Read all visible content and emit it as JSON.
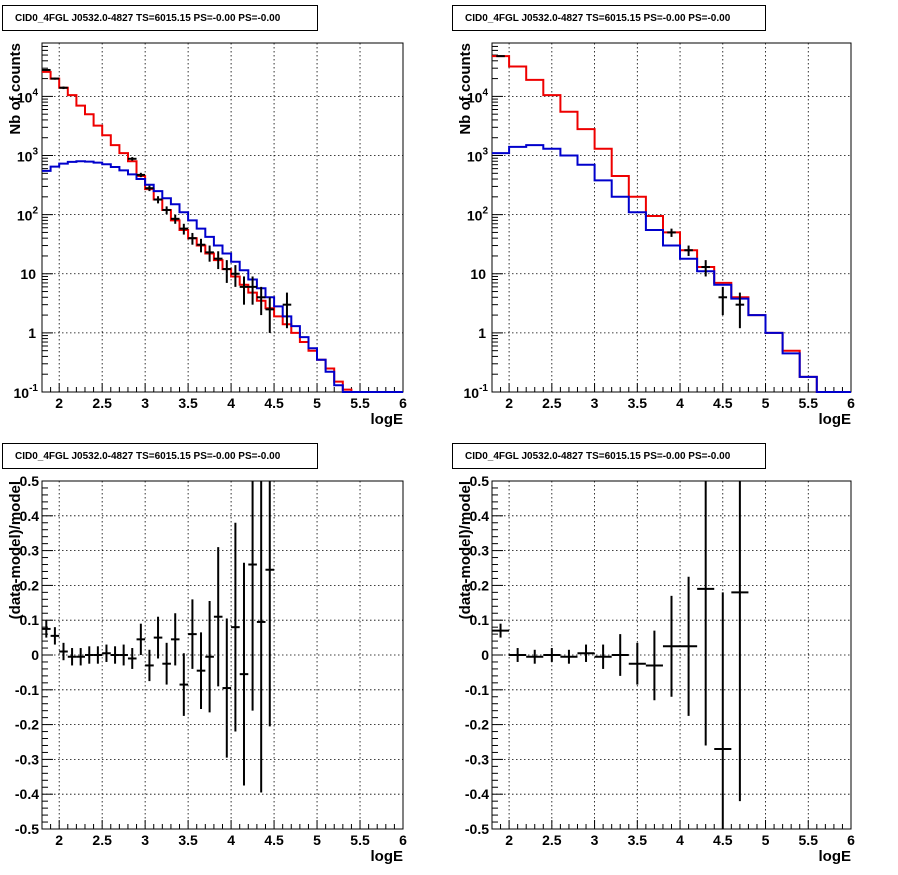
{
  "colors": {
    "data": "#000000",
    "red_model": "#ee0000",
    "blue_model": "#0000cc"
  },
  "panels": [
    {
      "title": "CID0_4FGL J0532.0-4827 TS=6015.15 PS=-0.00 PS=-0.00",
      "xlabel": "logE",
      "ylabel": "Nb of counts"
    },
    {
      "title": "CID0_4FGL J0532.0-4827 TS=6015.15 PS=-0.00 PS=-0.00",
      "xlabel": "logE",
      "ylabel": "Nb of counts"
    },
    {
      "title": "CID0_4FGL J0532.0-4827 TS=6015.15 PS=-0.00 PS=-0.00",
      "xlabel": "logE",
      "ylabel": "(data-model)/model"
    },
    {
      "title": "CID0_4FGL J0532.0-4827 TS=6015.15 PS=-0.00 PS=-0.00",
      "xlabel": "logE",
      "ylabel": "(data-model)/model"
    }
  ],
  "chart_data": [
    {
      "type": "line",
      "title": "CID0_4FGL J0532.0-4827 TS=6015.15 PS=-0.00 PS=-0.00",
      "xlabel": "logE",
      "ylabel": "Nb of counts",
      "yscale": "log",
      "xlim": [
        1.8,
        6.0
      ],
      "ylim": [
        0.1,
        80000
      ],
      "grid": true,
      "x_ticks": [
        2,
        2.5,
        3,
        3.5,
        4,
        4.5,
        5,
        5.5,
        6
      ],
      "x_tick_labels": [
        "2",
        "2.5",
        "3",
        "3.5",
        "4",
        "4.5",
        "5",
        "5.5",
        "6"
      ],
      "y_ticks": [
        0.1,
        1,
        10,
        100,
        1000,
        10000
      ],
      "y_tick_labels": [
        "10^-1",
        "1",
        "10",
        "10^2",
        "10^3",
        "10^4"
      ],
      "bin_edges": [
        1.8,
        1.9,
        2.0,
        2.1,
        2.2,
        2.3,
        2.4,
        2.5,
        2.6,
        2.7,
        2.8,
        2.9,
        3.0,
        3.1,
        3.2,
        3.3,
        3.4,
        3.5,
        3.6,
        3.7,
        3.8,
        3.9,
        4.0,
        4.1,
        4.2,
        4.3,
        4.4,
        4.5,
        4.6,
        4.7,
        4.8,
        4.9,
        5.0,
        5.1,
        5.2,
        5.3,
        5.4,
        5.5,
        5.6,
        5.7,
        5.8,
        5.9,
        6.0
      ],
      "series": [
        {
          "name": "",
          "color": "red",
          "values": [
            26000,
            20000,
            14000,
            10500,
            7000,
            5000,
            3200,
            2200,
            1500,
            1100,
            800,
            450,
            270,
            180,
            120,
            80,
            55,
            40,
            30,
            22,
            17,
            12,
            9,
            6.5,
            4.8,
            3.5,
            2.6,
            1.9,
            1.4,
            1,
            0.7,
            0.5,
            0.35,
            0.25,
            0.15,
            0.11,
            0.1,
            0.1,
            0.1,
            0.1,
            0.1,
            0.1
          ]
        },
        {
          "name": "",
          "color": "blue",
          "values": [
            550,
            650,
            730,
            780,
            800,
            790,
            760,
            710,
            640,
            560,
            480,
            400,
            320,
            250,
            190,
            150,
            110,
            80,
            58,
            42,
            30,
            22,
            16,
            11.5,
            8,
            5.7,
            4,
            2.8,
            1.9,
            1.3,
            0.85,
            0.55,
            0.35,
            0.22,
            0.13,
            0.1,
            0.1,
            0.1,
            0.1,
            0.1,
            0.1,
            0.1
          ]
        }
      ],
      "points": [
        {
          "x": 1.85,
          "y": 28000,
          "err": 900
        },
        {
          "x": 1.95,
          "y": 20000,
          "err": 800
        },
        {
          "x": 2.05,
          "y": 14000,
          "err": 700
        },
        {
          "x": 2.85,
          "y": 880,
          "err": 60
        },
        {
          "x": 2.95,
          "y": 470,
          "err": 40
        },
        {
          "x": 3.05,
          "y": 280,
          "err": 30
        },
        {
          "x": 3.15,
          "y": 180,
          "err": 25
        },
        {
          "x": 3.25,
          "y": 120,
          "err": 18
        },
        {
          "x": 3.35,
          "y": 85,
          "err": 15
        },
        {
          "x": 3.45,
          "y": 58,
          "err": 12
        },
        {
          "x": 3.55,
          "y": 40,
          "err": 9
        },
        {
          "x": 3.65,
          "y": 31,
          "err": 8
        },
        {
          "x": 3.75,
          "y": 23,
          "err": 7
        },
        {
          "x": 3.85,
          "y": 18,
          "err": 6
        },
        {
          "x": 3.95,
          "y": 12,
          "err": 5
        },
        {
          "x": 4.05,
          "y": 10,
          "err": 4
        },
        {
          "x": 4.15,
          "y": 6,
          "err": 3
        },
        {
          "x": 4.25,
          "y": 6,
          "err": 3
        },
        {
          "x": 4.35,
          "y": 4,
          "err": 2
        },
        {
          "x": 4.45,
          "y": 2.5,
          "err": 1.5
        },
        {
          "x": 4.65,
          "y": 3,
          "err": 1.8
        }
      ]
    },
    {
      "type": "line",
      "title": "CID0_4FGL J0532.0-4827 TS=6015.15 PS=-0.00 PS=-0.00",
      "xlabel": "logE",
      "ylabel": "Nb of counts",
      "yscale": "log",
      "xlim": [
        1.8,
        6.0
      ],
      "ylim": [
        0.1,
        80000
      ],
      "grid": true,
      "x_ticks": [
        2,
        2.5,
        3,
        3.5,
        4,
        4.5,
        5,
        5.5,
        6
      ],
      "x_tick_labels": [
        "2",
        "2.5",
        "3",
        "3.5",
        "4",
        "4.5",
        "5",
        "5.5",
        "6"
      ],
      "y_ticks": [
        0.1,
        1,
        10,
        100,
        1000,
        10000
      ],
      "y_tick_labels": [
        "10^-1",
        "1",
        "10",
        "10^2",
        "10^3",
        "10^4"
      ],
      "bin_edges": [
        1.8,
        2.0,
        2.2,
        2.4,
        2.6,
        2.8,
        3.0,
        3.2,
        3.4,
        3.6,
        3.8,
        4.0,
        4.2,
        4.4,
        4.6,
        4.8,
        5.0,
        5.2,
        5.4,
        5.6,
        5.8,
        6.0
      ],
      "series": [
        {
          "name": "",
          "color": "red",
          "values": [
            48000,
            32000,
            19000,
            10500,
            5500,
            2800,
            1300,
            450,
            200,
            95,
            50,
            25,
            13,
            7,
            4,
            2,
            1,
            0.5,
            0.18,
            0.1,
            0.1
          ]
        },
        {
          "name": "",
          "color": "blue",
          "values": [
            1100,
            1400,
            1500,
            1300,
            1000,
            700,
            380,
            200,
            110,
            55,
            30,
            18,
            11,
            6.5,
            3.8,
            2,
            1,
            0.45,
            0.18,
            0.1,
            0.1
          ]
        }
      ],
      "points": [
        {
          "x": 1.9,
          "y": 48000,
          "err": 1500
        },
        {
          "x": 3.9,
          "y": 50,
          "err": 8
        },
        {
          "x": 4.1,
          "y": 25,
          "err": 5
        },
        {
          "x": 4.3,
          "y": 13,
          "err": 4
        },
        {
          "x": 4.5,
          "y": 4,
          "err": 2
        },
        {
          "x": 4.7,
          "y": 3,
          "err": 1.8
        }
      ]
    },
    {
      "type": "scatter",
      "title": "CID0_4FGL J0532.0-4827 TS=6015.15 PS=-0.00 PS=-0.00",
      "xlabel": "logE",
      "ylabel": "(data-model)/model",
      "xlim": [
        1.8,
        6.0
      ],
      "ylim": [
        -0.5,
        0.5
      ],
      "grid": true,
      "x_ticks": [
        2,
        2.5,
        3,
        3.5,
        4,
        4.5,
        5,
        5.5,
        6
      ],
      "x_tick_labels": [
        "2",
        "2.5",
        "3",
        "3.5",
        "4",
        "4.5",
        "5",
        "5.5",
        "6"
      ],
      "y_ticks": [
        -0.5,
        -0.4,
        -0.3,
        -0.2,
        -0.1,
        0,
        0.1,
        0.2,
        0.3,
        0.4,
        0.5
      ],
      "y_tick_labels": [
        "-0.5",
        "-0.4",
        "-0.3",
        "-0.2",
        "-0.1",
        "0",
        "0.1",
        "0.2",
        "0.3",
        "0.4",
        "0.5"
      ],
      "xerr": 0.05,
      "points": [
        {
          "x": 1.85,
          "y": 0.075,
          "err": 0.025
        },
        {
          "x": 1.95,
          "y": 0.055,
          "err": 0.025
        },
        {
          "x": 2.05,
          "y": 0.01,
          "err": 0.025
        },
        {
          "x": 2.15,
          "y": -0.005,
          "err": 0.025
        },
        {
          "x": 2.25,
          "y": -0.005,
          "err": 0.025
        },
        {
          "x": 2.35,
          "y": 0.0,
          "err": 0.025
        },
        {
          "x": 2.45,
          "y": 0.0,
          "err": 0.025
        },
        {
          "x": 2.55,
          "y": 0.005,
          "err": 0.025
        },
        {
          "x": 2.65,
          "y": 0.0,
          "err": 0.025
        },
        {
          "x": 2.75,
          "y": 0.0,
          "err": 0.03
        },
        {
          "x": 2.85,
          "y": -0.01,
          "err": 0.03
        },
        {
          "x": 2.95,
          "y": 0.045,
          "err": 0.045
        },
        {
          "x": 3.05,
          "y": -0.03,
          "err": 0.045
        },
        {
          "x": 3.15,
          "y": 0.05,
          "err": 0.06
        },
        {
          "x": 3.25,
          "y": -0.025,
          "err": 0.06
        },
        {
          "x": 3.35,
          "y": 0.045,
          "err": 0.075
        },
        {
          "x": 3.45,
          "y": -0.085,
          "err": 0.09
        },
        {
          "x": 3.55,
          "y": 0.06,
          "err": 0.1
        },
        {
          "x": 3.65,
          "y": -0.045,
          "err": 0.11
        },
        {
          "x": 3.75,
          "y": -0.005,
          "err": 0.16
        },
        {
          "x": 3.85,
          "y": 0.11,
          "err": 0.2
        },
        {
          "x": 3.95,
          "y": -0.095,
          "err": 0.2
        },
        {
          "x": 4.05,
          "y": 0.08,
          "err": 0.3
        },
        {
          "x": 4.15,
          "y": -0.055,
          "err": 0.32
        },
        {
          "x": 4.25,
          "y": 0.26,
          "err": 0.42
        },
        {
          "x": 4.35,
          "y": 0.095,
          "err": 0.49
        },
        {
          "x": 4.45,
          "y": 0.245,
          "err": 0.45
        }
      ]
    },
    {
      "type": "scatter",
      "title": "CID0_4FGL J0532.0-4827 TS=6015.15 PS=-0.00 PS=-0.00",
      "xlabel": "logE",
      "ylabel": "(data-model)/model",
      "xlim": [
        1.8,
        6.0
      ],
      "ylim": [
        -0.5,
        0.5
      ],
      "grid": true,
      "x_ticks": [
        2,
        2.5,
        3,
        3.5,
        4,
        4.5,
        5,
        5.5,
        6
      ],
      "x_tick_labels": [
        "2",
        "2.5",
        "3",
        "3.5",
        "4",
        "4.5",
        "5",
        "5.5",
        "6"
      ],
      "y_ticks": [
        -0.5,
        -0.4,
        -0.3,
        -0.2,
        -0.1,
        0,
        0.1,
        0.2,
        0.3,
        0.4,
        0.5
      ],
      "y_tick_labels": [
        "-0.5",
        "-0.4",
        "-0.3",
        "-0.2",
        "-0.1",
        "0",
        "0.1",
        "0.2",
        "0.3",
        "0.4",
        "0.5"
      ],
      "xerr": 0.1,
      "points": [
        {
          "x": 1.9,
          "y": 0.07,
          "err": 0.02
        },
        {
          "x": 2.1,
          "y": 0.0,
          "err": 0.02
        },
        {
          "x": 2.3,
          "y": -0.005,
          "err": 0.02
        },
        {
          "x": 2.5,
          "y": 0.0,
          "err": 0.02
        },
        {
          "x": 2.7,
          "y": -0.005,
          "err": 0.02
        },
        {
          "x": 2.9,
          "y": 0.005,
          "err": 0.025
        },
        {
          "x": 3.1,
          "y": -0.005,
          "err": 0.035
        },
        {
          "x": 3.3,
          "y": 0.0,
          "err": 0.06
        },
        {
          "x": 3.5,
          "y": -0.025,
          "err": 0.06
        },
        {
          "x": 3.7,
          "y": -0.03,
          "err": 0.1
        },
        {
          "x": 3.9,
          "y": 0.025,
          "err": 0.145
        },
        {
          "x": 4.1,
          "y": 0.025,
          "err": 0.2
        },
        {
          "x": 4.3,
          "y": 0.19,
          "err": 0.45
        },
        {
          "x": 4.5,
          "y": -0.27,
          "err": 0.45
        },
        {
          "x": 4.7,
          "y": 0.18,
          "err": 0.6
        }
      ]
    }
  ]
}
